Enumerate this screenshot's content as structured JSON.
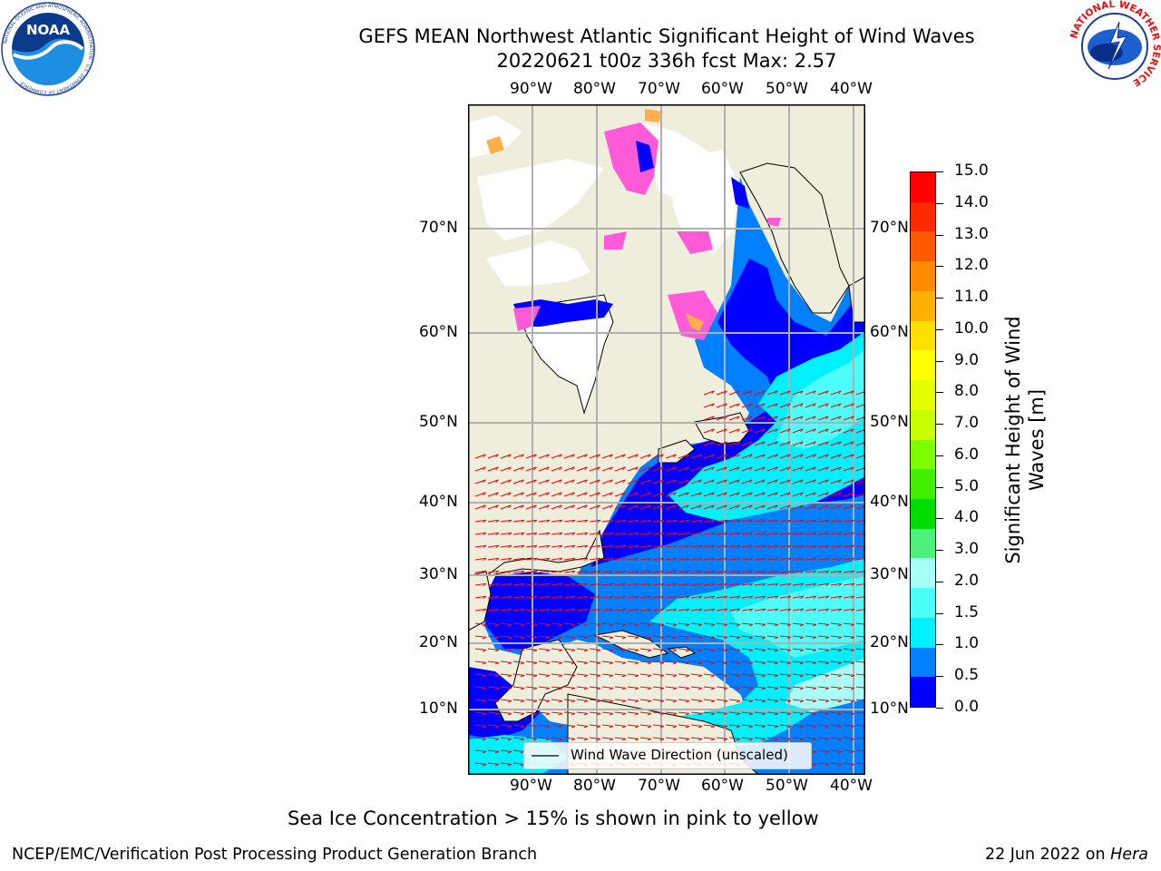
{
  "header": {
    "title_line1": "GEFS MEAN Northwest Atlantic Significant Height of Wind Waves",
    "title_line2": "20220621 t00z 336h fcst   Max: 2.57"
  },
  "logos": {
    "noaa": {
      "text": "NOAA",
      "ring_text": "NATIONAL OCEANIC AND ATMOSPHERIC ADMINISTRATION · U.S. DEPARTMENT OF COMMERCE"
    },
    "nws": {
      "ring_text": "NATIONAL WEATHER SERVICE"
    }
  },
  "map": {
    "lon_labels": [
      "90°W",
      "80°W",
      "70°W",
      "60°W",
      "50°W",
      "40°W"
    ],
    "lat_labels": [
      "70°N",
      "60°N",
      "50°N",
      "40°N",
      "30°N",
      "20°N",
      "10°N"
    ],
    "legend_label": "Wind Wave Direction (unscaled)",
    "colors": {
      "land": "#efeedc",
      "ice_free_water": "#ffffff",
      "ice_pink": "#ff5ad7",
      "ice_orange": "#ffb04a",
      "arrow": "#ff0000",
      "grid": "#b0b0b0"
    }
  },
  "colorbar": {
    "label_line1": "Significant Height of Wind",
    "label_line2": "Waves [m]",
    "ticks": [
      "15.0",
      "14.0",
      "13.0",
      "12.0",
      "11.0",
      "10.0",
      "9.0",
      "8.0",
      "7.0",
      "6.0",
      "5.0",
      "4.0",
      "3.0",
      "2.0",
      "1.5",
      "1.0",
      "0.5",
      "0.0"
    ],
    "colors_top_to_bottom": [
      "#ff0000",
      "#ff2a00",
      "#ff5a00",
      "#ff8a00",
      "#ffb000",
      "#ffe000",
      "#ffff00",
      "#e6ff00",
      "#c8ff00",
      "#7cff00",
      "#44ee00",
      "#00dd00",
      "#4cf07a",
      "#a8fff8",
      "#4cfffa",
      "#00f0ff",
      "#0080ff",
      "#0000ff"
    ]
  },
  "notes": {
    "ice_note": "Sea Ice Concentration > 15% is shown in pink to yellow"
  },
  "footer": {
    "left": "NCEP/EMC/Verification Post Processing Product Generation Branch",
    "right_date": "22 Jun 2022 on ",
    "right_host": "Hera"
  }
}
